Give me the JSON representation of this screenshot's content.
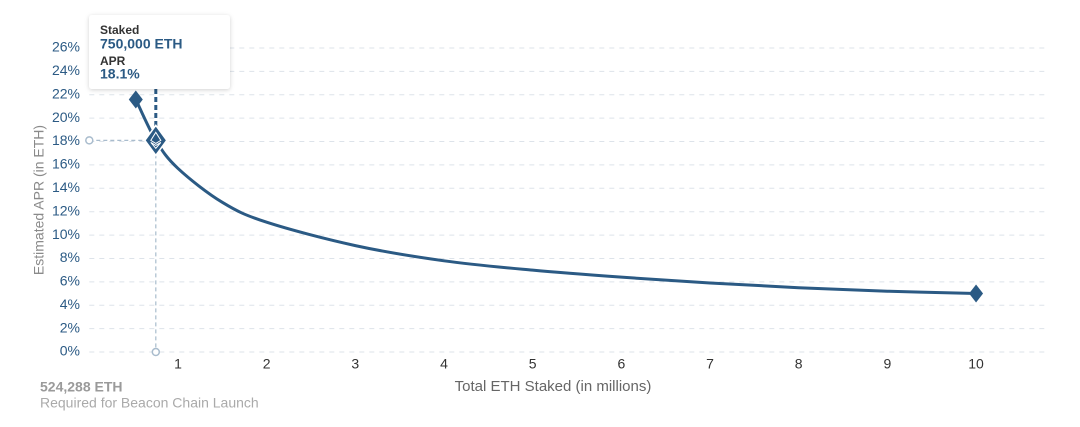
{
  "chart_data": {
    "type": "line",
    "x_label": "Total ETH Staked  (in millions)",
    "y_label": "Estimated APR (in ETH)",
    "series": [
      {
        "name": "APR",
        "color": "#2b5a84",
        "x": [
          0.524288,
          0.75,
          1,
          1.5,
          2,
          3,
          4,
          5,
          6,
          7,
          8,
          9,
          10
        ],
        "values": [
          21.6,
          18.1,
          15.7,
          12.8,
          11.1,
          9.1,
          7.8,
          7.0,
          6.4,
          5.9,
          5.5,
          5.2,
          5.0
        ]
      }
    ],
    "xlim": [
      0,
      10.8
    ],
    "ylim": [
      0,
      26
    ],
    "xticks": [
      1,
      2,
      3,
      4,
      5,
      6,
      7,
      8,
      9,
      10
    ],
    "yticks": [
      {
        "value": 0,
        "label": "0%"
      },
      {
        "value": 2,
        "label": "2%"
      },
      {
        "value": 4,
        "label": "4%"
      },
      {
        "value": 6,
        "label": "6%"
      },
      {
        "value": 8,
        "label": "8%"
      },
      {
        "value": 10,
        "label": "10%"
      },
      {
        "value": 12,
        "label": "12%"
      },
      {
        "value": 14,
        "label": "14%"
      },
      {
        "value": 16,
        "label": "16%"
      },
      {
        "value": 18,
        "label": "18%"
      },
      {
        "value": 20,
        "label": "20%"
      },
      {
        "value": 22,
        "label": "22%"
      },
      {
        "value": 24,
        "label": "24%"
      },
      {
        "value": 26,
        "label": "26%"
      }
    ],
    "grid": true,
    "tooltip": {
      "staked_label": "Staked",
      "staked": 0.75,
      "staked_text": "750,000 ETH",
      "apr_label": "APR",
      "apr": 18.1,
      "apr_text": "18.1%"
    },
    "annotation": {
      "value": 524288,
      "label": "524,288 ETH",
      "note": "Required for Beacon Chain Launch"
    }
  }
}
